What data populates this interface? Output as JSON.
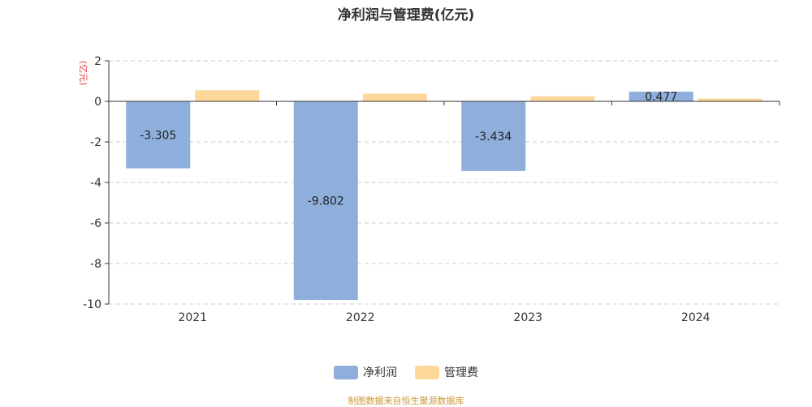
{
  "chart_data": {
    "type": "bar",
    "title": "净利润与管理费(亿元)",
    "ylabel": "(亿元)",
    "xlabel": "",
    "categories": [
      "2021",
      "2022",
      "2023",
      "2024"
    ],
    "series": [
      {
        "name": "净利润",
        "values": [
          -3.305,
          -9.802,
          -3.434,
          0.477
        ],
        "color": "#8eafdc",
        "labels": [
          "-3.305",
          "-9.802",
          "-3.434",
          "0.477"
        ]
      },
      {
        "name": "管理费",
        "values": [
          0.55,
          0.38,
          0.25,
          0.14
        ],
        "color": "#fdd89a"
      }
    ],
    "ylim": [
      -10,
      2
    ],
    "yticks": [
      2,
      0,
      -2,
      -4,
      -6,
      -8,
      -10
    ],
    "ytick_labels": [
      "2",
      "0",
      "-2",
      "-4",
      "-6",
      "-8",
      "-10"
    ],
    "grid": true,
    "legend": "bottom-center"
  },
  "legend": {
    "items": [
      {
        "label": "净利润",
        "color": "#8eafdc"
      },
      {
        "label": "管理费",
        "color": "#fdd89a"
      }
    ]
  },
  "source": "制图数据来自恒生聚源数据库",
  "colors": {
    "ylabel": "#e0393e",
    "axis": "#333333",
    "grid": "#cccccc"
  }
}
